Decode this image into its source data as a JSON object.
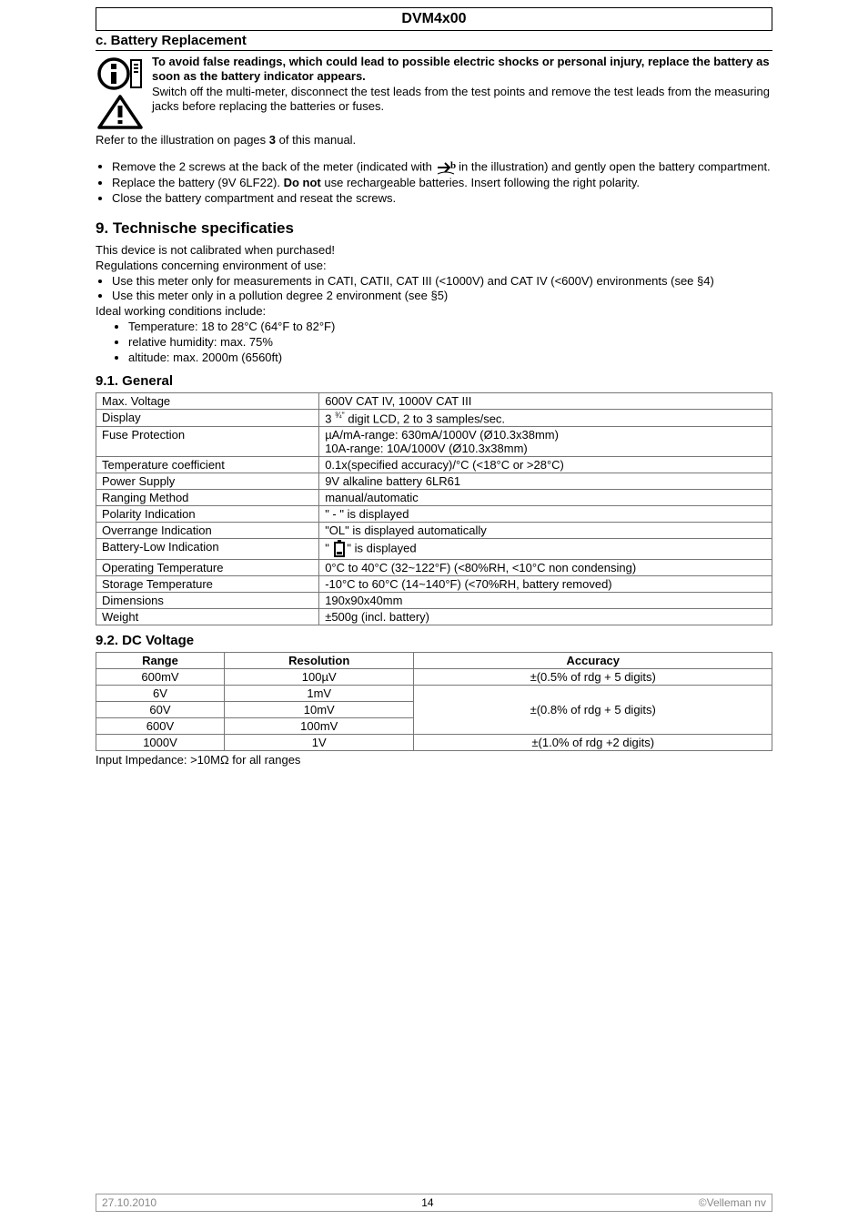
{
  "header": {
    "title": "DVM4x00"
  },
  "sectionC": {
    "title": "c. Battery Replacement"
  },
  "warning": {
    "bold": "To avoid false readings, which could lead to possible electric shocks or personal injury, replace the battery as soon as the battery indicator appears.",
    "plain": "Switch off the multi-meter, disconnect the test leads from the test points and remove the test leads from the measuring jacks before replacing the batteries or fuses."
  },
  "refer": {
    "pre": "Refer to the illustration on pages ",
    "bold": "3",
    "post": " of this manual."
  },
  "bullets1": {
    "b1a": "Remove the 2 screws at the back of the meter (indicated with ",
    "b1b": " in the illustration) and gently open the battery compartment.",
    "b2a": "Replace the battery (9V 6LF22). ",
    "b2bold": "Do not",
    "b2b": " use rechargeable batteries. Insert following the right polarity.",
    "b3": "Close the battery compartment and reseat the screws."
  },
  "section9": {
    "title": "9.   Technische specificaties"
  },
  "regs": {
    "l1": "This device is not calibrated when purchased!",
    "l2": "Regulations concerning environment of use:",
    "b1": "Use this meter only for measurements in CATI, CATII, CAT III (<1000V) and CAT IV (<600V) environments (see §4)",
    "b2": "Use this meter only in a pollution degree 2 environment (see §5)",
    "l3": "Ideal working conditions include:",
    "c1": "Temperature: 18 to 28°C (64°F to 82°F)",
    "c2": "relative humidity: max. 75%",
    "c3": "altitude: max. 2000m (6560ft)"
  },
  "section91": {
    "title": "9.1.      General"
  },
  "general": {
    "rows": [
      {
        "k": "Max. Voltage",
        "v": "600V CAT IV, 1000V CAT III"
      },
      {
        "k": "Display",
        "v": "__DISPLAY__"
      },
      {
        "k": "Fuse Protection",
        "v": "µA/mA-range: 630mA/1000V (Ø10.3x38mm)\n10A-range: 10A/1000V (Ø10.3x38mm)"
      },
      {
        "k": "Temperature coefficient",
        "v": "0.1x(specified accuracy)/°C (<18°C or >28°C)"
      },
      {
        "k": "Power Supply",
        "v": "9V alkaline battery 6LR61"
      },
      {
        "k": "Ranging Method",
        "v": "manual/automatic"
      },
      {
        "k": "Polarity Indication",
        "v": "\" - \" is displayed"
      },
      {
        "k": "Overrange Indication",
        "v": "\"OL\" is displayed automatically"
      },
      {
        "k": "Battery-Low Indication",
        "v": "__BATT__"
      },
      {
        "k": "Operating Temperature",
        "v": "0°C to 40°C (32~122°F) (<80%RH, <10°C non condensing)"
      },
      {
        "k": "Storage Temperature",
        "v": "-10°C to 60°C (14~140°F) (<70%RH, battery removed)"
      },
      {
        "k": "Dimensions",
        "v": "190x90x40mm"
      },
      {
        "k": "Weight",
        "v": "±500g (incl. battery)"
      }
    ],
    "displayText": {
      "pre": "3 ",
      "sup": "¾\"",
      "post": " digit LCD, 2 to 3 samples/sec."
    },
    "battText": {
      "pre": "\" ",
      "post": "\" is displayed"
    }
  },
  "section92": {
    "title": "9.2.      DC Voltage"
  },
  "dc": {
    "headers": {
      "c1": "Range",
      "c2": "Resolution",
      "c3": "Accuracy"
    },
    "rows": [
      {
        "r": "600mV",
        "res": "100µV",
        "acc": "±(0.5% of rdg + 5 digits)",
        "accspan": 1
      },
      {
        "r": "6V",
        "res": "1mV",
        "acc": "±(0.8% of rdg + 5 digits)",
        "accspan": 3
      },
      {
        "r": "60V",
        "res": "10mV"
      },
      {
        "r": "600V",
        "res": "100mV"
      },
      {
        "r": "1000V",
        "res": "1V",
        "acc": "±(1.0% of rdg +2 digits)",
        "accspan": 1
      }
    ],
    "note": "Input Impedance: >10MΩ for all ranges"
  },
  "footer": {
    "date": "27.10.2010",
    "page": "14",
    "copy": "©Velleman nv"
  },
  "colors": {
    "border": "#777777",
    "muted": "#888888"
  }
}
